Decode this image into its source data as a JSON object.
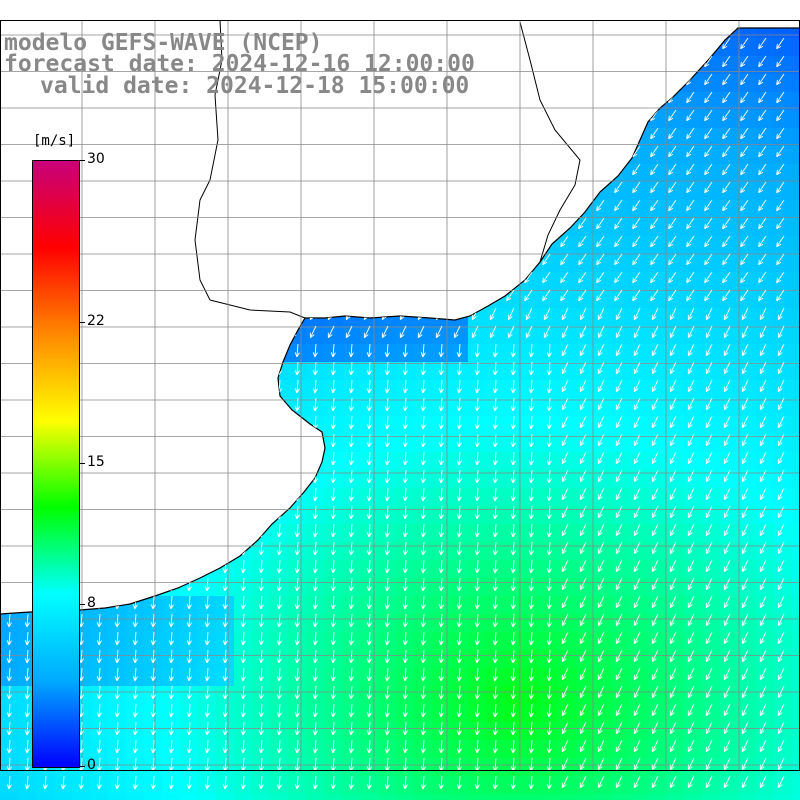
{
  "title": {
    "model": "modelo GEFS-WAVE (NCEP)",
    "forecast_date": "forecast date: 2024-12-16 12:00:00",
    "valid_date": "valid date: 2024-12-18 15:00:00"
  },
  "colorbar": {
    "unit": "[m/s]",
    "min": 0,
    "max": 30,
    "ticks": [
      {
        "value": 30,
        "label": "30"
      },
      {
        "value": 22,
        "label": "22"
      },
      {
        "value": 15,
        "label": "15"
      },
      {
        "value": 8,
        "label": "8"
      },
      {
        "value": 0,
        "label": "0"
      }
    ],
    "stops": [
      "#0000ff",
      "#00aaff",
      "#00ffff",
      "#00ff00",
      "#ffff00",
      "#ff8800",
      "#ff0000",
      "#c8007a"
    ]
  },
  "colors": {
    "land": "#ffffff",
    "coast": "#000000",
    "grid": "#888888",
    "arrow": "#ffffff"
  },
  "map": {
    "field": "wind speed",
    "direction": "predominantly southward / south-westward flow",
    "icons": [
      "wind-arrow-icon"
    ]
  }
}
